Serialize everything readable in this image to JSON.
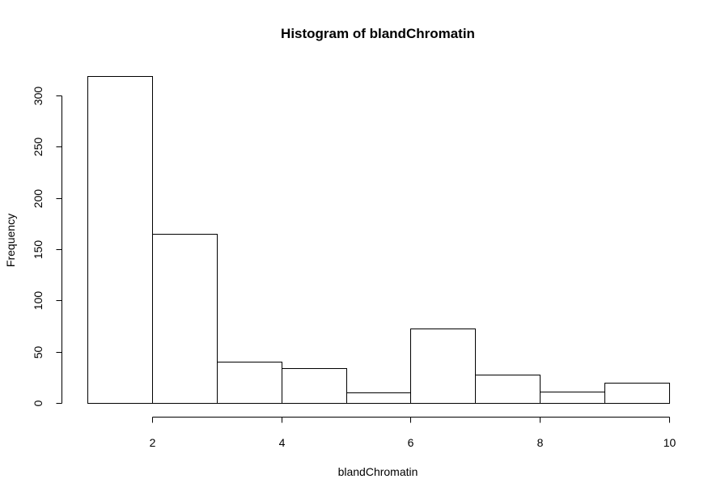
{
  "chart_data": {
    "type": "bar",
    "title": "Histogram of blandChromatin",
    "xlabel": "blandChromatin",
    "ylabel": "Frequency",
    "bins": [
      {
        "start": 1,
        "end": 2,
        "count": 319
      },
      {
        "start": 2,
        "end": 3,
        "count": 165
      },
      {
        "start": 3,
        "end": 4,
        "count": 40
      },
      {
        "start": 4,
        "end": 5,
        "count": 34
      },
      {
        "start": 5,
        "end": 6,
        "count": 10
      },
      {
        "start": 6,
        "end": 7,
        "count": 73
      },
      {
        "start": 7,
        "end": 8,
        "count": 28
      },
      {
        "start": 8,
        "end": 9,
        "count": 11
      },
      {
        "start": 9,
        "end": 10,
        "count": 20
      }
    ],
    "xlim": [
      1,
      10
    ],
    "ylim": [
      0,
      319
    ],
    "x_ticks": [
      2,
      4,
      6,
      8,
      10
    ],
    "y_ticks": [
      0,
      50,
      100,
      150,
      200,
      250,
      300
    ],
    "grid": false,
    "legend": "none"
  }
}
